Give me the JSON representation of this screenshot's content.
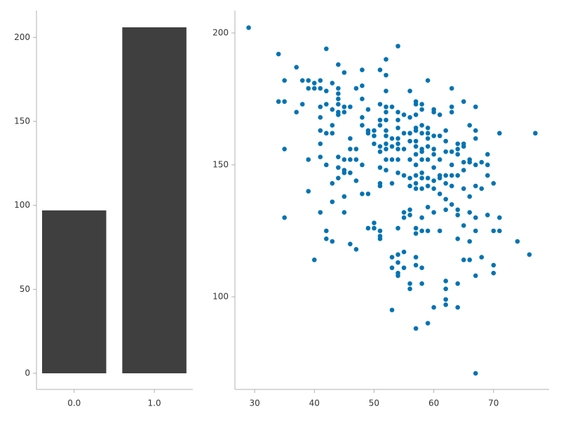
{
  "chart_data": [
    {
      "type": "bar",
      "x": [
        0,
        1
      ],
      "values": [
        97,
        206
      ],
      "color": "#3f3f3f",
      "xlim": [
        -0.47,
        1.48
      ],
      "ylim": [
        -9.6,
        216
      ],
      "xticks": [
        {
          "value": 0,
          "label": "0.0"
        },
        {
          "value": 1,
          "label": "1.0"
        }
      ],
      "yticks": [
        0,
        50,
        100,
        150,
        200
      ]
    },
    {
      "type": "scatter",
      "color": "#0173b2",
      "xlim": [
        26.7,
        79.3
      ],
      "ylim": [
        64.9,
        208.5
      ],
      "xticks": [
        30,
        40,
        50,
        60,
        70
      ],
      "yticks": [
        100,
        150,
        200
      ],
      "x": [
        29,
        34,
        34,
        35,
        35,
        35,
        35,
        37,
        37,
        38,
        38,
        39,
        39,
        39,
        39,
        40,
        40,
        40,
        41,
        41,
        41,
        41,
        41,
        41,
        41,
        41,
        42,
        42,
        42,
        42,
        42,
        42,
        42,
        43,
        43,
        43,
        43,
        43,
        43,
        43,
        44,
        44,
        44,
        44,
        44,
        44,
        44,
        44,
        44,
        44,
        45,
        45,
        45,
        45,
        45,
        45,
        45,
        45,
        46,
        46,
        46,
        46,
        46,
        46,
        47,
        47,
        47,
        47,
        47,
        48,
        48,
        48,
        48,
        48,
        48,
        48,
        49,
        49,
        49,
        49,
        49,
        50,
        50,
        50,
        50,
        50,
        51,
        51,
        51,
        51,
        51,
        51,
        51,
        51,
        51,
        51,
        51,
        51,
        52,
        52,
        52,
        52,
        52,
        52,
        52,
        52,
        52,
        52,
        52,
        52,
        53,
        53,
        53,
        53,
        53,
        53,
        53,
        53,
        54,
        54,
        54,
        54,
        54,
        54,
        54,
        54,
        54,
        54,
        54,
        54,
        54,
        54,
        55,
        55,
        55,
        55,
        55,
        55,
        55,
        55,
        56,
        56,
        56,
        56,
        56,
        56,
        56,
        56,
        56,
        56,
        56,
        57,
        57,
        57,
        57,
        57,
        57,
        57,
        57,
        57,
        57,
        57,
        57,
        57,
        57,
        57,
        57,
        57,
        58,
        58,
        58,
        58,
        58,
        58,
        58,
        58,
        58,
        58,
        58,
        58,
        58,
        58,
        59,
        59,
        59,
        59,
        59,
        59,
        59,
        59,
        59,
        59,
        59,
        60,
        60,
        60,
        60,
        60,
        60,
        60,
        60,
        60,
        60,
        61,
        61,
        61,
        61,
        61,
        61,
        61,
        62,
        62,
        62,
        62,
        62,
        62,
        62,
        62,
        62,
        62,
        62,
        63,
        63,
        63,
        63,
        63,
        63,
        63,
        63,
        64,
        64,
        64,
        64,
        64,
        64,
        64,
        64,
        64,
        65,
        65,
        65,
        65,
        65,
        65,
        65,
        65,
        66,
        66,
        66,
        66,
        66,
        66,
        66,
        67,
        67,
        67,
        67,
        67,
        67,
        67,
        67,
        67,
        68,
        68,
        68,
        69,
        69,
        69,
        69,
        70,
        70,
        70,
        70,
        71,
        71,
        71,
        74,
        76,
        77
      ],
      "values": [
        202,
        192,
        174,
        174,
        182,
        156,
        130,
        187,
        170,
        182,
        173,
        182,
        179,
        152,
        140,
        181,
        179,
        114,
        182,
        179,
        172,
        168,
        163,
        158,
        153,
        132,
        194,
        178,
        173,
        162,
        150,
        125,
        122,
        181,
        171,
        165,
        162,
        143,
        136,
        121,
        188,
        179,
        177,
        175,
        173,
        170,
        169,
        153,
        149,
        145,
        185,
        172,
        170,
        152,
        148,
        147,
        138,
        132,
        172,
        160,
        156,
        152,
        147,
        120,
        179,
        156,
        152,
        144,
        118,
        186,
        180,
        175,
        168,
        165,
        150,
        139,
        171,
        163,
        162,
        139,
        126,
        163,
        161,
        158,
        128,
        126,
        186,
        173,
        167,
        165,
        157,
        155,
        149,
        143,
        142,
        125,
        123,
        122,
        190,
        184,
        178,
        172,
        170,
        167,
        163,
        161,
        158,
        156,
        152,
        148,
        172,
        160,
        157,
        152,
        143,
        115,
        111,
        95,
        195,
        170,
        167,
        164,
        160,
        158,
        156,
        152,
        147,
        126,
        116,
        113,
        109,
        108,
        169,
        162,
        156,
        146,
        132,
        130,
        117,
        111,
        178,
        168,
        162,
        159,
        152,
        145,
        142,
        133,
        131,
        105,
        103,
        174,
        173,
        169,
        164,
        163,
        159,
        157,
        154,
        150,
        146,
        143,
        141,
        126,
        124,
        115,
        112,
        88,
        173,
        171,
        165,
        162,
        156,
        155,
        152,
        147,
        145,
        141,
        130,
        125,
        111,
        105,
        182,
        164,
        162,
        160,
        157,
        152,
        145,
        142,
        134,
        125,
        90,
        171,
        170,
        161,
        156,
        154,
        149,
        144,
        141,
        132,
        96,
        169,
        161,
        152,
        146,
        145,
        139,
        125,
        163,
        159,
        155,
        146,
        143,
        137,
        133,
        106,
        103,
        99,
        97,
        179,
        172,
        170,
        155,
        150,
        146,
        142,
        135,
        158,
        156,
        154,
        146,
        133,
        131,
        122,
        105,
        96,
        174,
        158,
        157,
        151,
        148,
        141,
        127,
        114,
        165,
        152,
        151,
        138,
        132,
        121,
        114,
        172,
        163,
        160,
        150,
        142,
        130,
        125,
        108,
        71,
        151,
        141,
        115,
        154,
        150,
        146,
        131,
        143,
        125,
        112,
        109,
        162,
        130,
        125,
        121,
        116,
        162
      ]
    }
  ]
}
